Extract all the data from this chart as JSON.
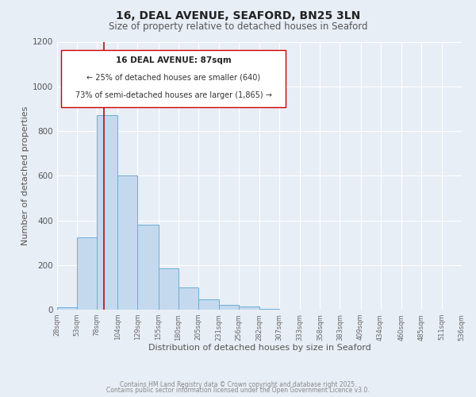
{
  "title": "16, DEAL AVENUE, SEAFORD, BN25 3LN",
  "subtitle": "Size of property relative to detached houses in Seaford",
  "xlabel": "Distribution of detached houses by size in Seaford",
  "ylabel": "Number of detached properties",
  "bin_edges": [
    28,
    53,
    78,
    104,
    129,
    155,
    180,
    205,
    231,
    256,
    282,
    307,
    333,
    358,
    383,
    409,
    434,
    460,
    485,
    511,
    536
  ],
  "bar_heights": [
    10,
    325,
    870,
    600,
    380,
    185,
    100,
    47,
    20,
    15,
    5,
    0,
    0,
    0,
    0,
    0,
    0,
    0,
    0,
    0
  ],
  "bar_color": "#c5d9ee",
  "bar_edge_color": "#6aaed6",
  "vline_x": 87,
  "vline_color": "#aa1111",
  "annotation_title": "16 DEAL AVENUE: 87sqm",
  "annotation_line1": "← 25% of detached houses are smaller (640)",
  "annotation_line2": "73% of semi-detached houses are larger (1,865) →",
  "annotation_box_color": "#ffffff",
  "annotation_box_edge": "#cc0000",
  "ylim": [
    0,
    1200
  ],
  "yticks": [
    0,
    200,
    400,
    600,
    800,
    1000,
    1200
  ],
  "background_color": "#e8eef6",
  "grid_color": "#d0d8e8",
  "footer_line1": "Contains HM Land Registry data © Crown copyright and database right 2025.",
  "footer_line2": "Contains public sector information licensed under the Open Government Licence v3.0.",
  "tick_labels": [
    "28sqm",
    "53sqm",
    "78sqm",
    "104sqm",
    "129sqm",
    "155sqm",
    "180sqm",
    "205sqm",
    "231sqm",
    "256sqm",
    "282sqm",
    "307sqm",
    "333sqm",
    "358sqm",
    "383sqm",
    "409sqm",
    "434sqm",
    "460sqm",
    "485sqm",
    "511sqm",
    "536sqm"
  ]
}
